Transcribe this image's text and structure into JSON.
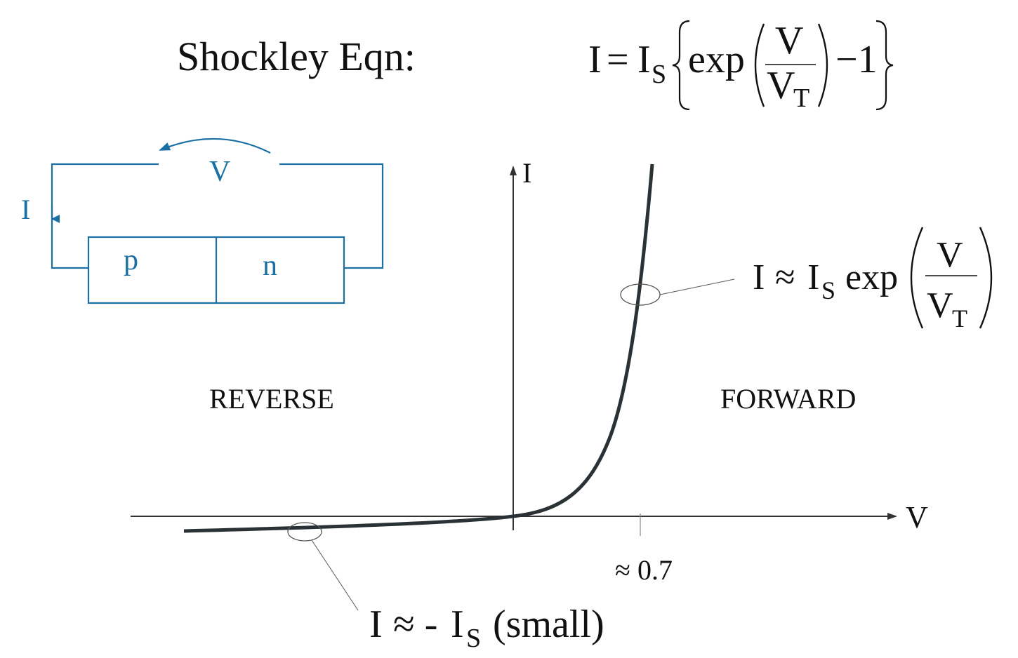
{
  "title": "Shockley Eqn:",
  "equation": {
    "lhs": "I",
    "equals": "=",
    "is_base": "I",
    "is_sub": "S",
    "exp": "exp",
    "num": "V",
    "den_base": "V",
    "den_sub": "T",
    "minus_one": "−1"
  },
  "circuit": {
    "voltage_label": "V",
    "current_label": "I",
    "p_label": "p",
    "n_label": "n",
    "color": "#1a6fa3"
  },
  "graph": {
    "y_axis_label": "I",
    "x_axis_label": "V",
    "reverse_label": "REVERSE",
    "forward_label": "FORWARD",
    "knee_label": "≈ 0.7",
    "curve_color": "#2b3236",
    "axis_color": "#333333"
  },
  "forward_approx": {
    "lhs": "I",
    "approx": "≈",
    "is_base": "I",
    "is_sub": "S",
    "exp": "exp",
    "num": "V",
    "den_base": "V",
    "den_sub": "T"
  },
  "reverse_approx": {
    "lhs": "I",
    "approx": "≈ -",
    "is_base": "I",
    "is_sub": "S",
    "note": "(small)"
  }
}
